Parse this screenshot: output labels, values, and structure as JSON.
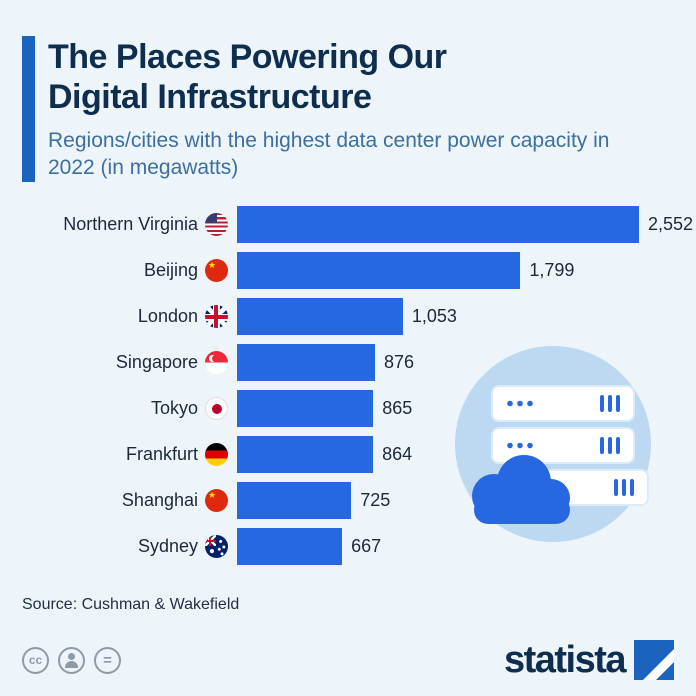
{
  "colors": {
    "background": "#edf4fa",
    "accent_bar": "#1a63be",
    "bar": "#2767e0",
    "title": "#0f2e4e",
    "subtitle": "#3e6f9e",
    "illustration_circle": "#bcd9f1"
  },
  "header": {
    "title": "The Places Powering Our Digital Infrastructure",
    "subtitle": "Regions/cities with the highest data center power capacity in 2022 (in megawatts)"
  },
  "chart_data": {
    "type": "bar",
    "orientation": "horizontal",
    "title": "The Places Powering Our Digital Infrastructure",
    "subtitle": "Regions/cities with the highest data center power capacity in 2022 (in megawatts)",
    "unit": "megawatts",
    "year": 2022,
    "xlim": [
      0,
      2552
    ],
    "grid": false,
    "legend": false,
    "value_label_position": "right-of-bar",
    "categories": [
      "Northern Virginia",
      "Beijing",
      "London",
      "Singapore",
      "Tokyo",
      "Frankfurt",
      "Shanghai",
      "Sydney"
    ],
    "values": [
      2552,
      1799,
      1053,
      876,
      865,
      864,
      725,
      667
    ],
    "value_labels": [
      "2,552",
      "1,799",
      "1,053",
      "876",
      "865",
      "864",
      "725",
      "667"
    ],
    "flags": [
      "us",
      "cn",
      "gb",
      "sg",
      "jp",
      "de",
      "cn",
      "au"
    ]
  },
  "footer": {
    "source": "Source: Cushman & Wakefield",
    "brand": "statista",
    "license": {
      "cc": "cc",
      "nd": "="
    }
  }
}
